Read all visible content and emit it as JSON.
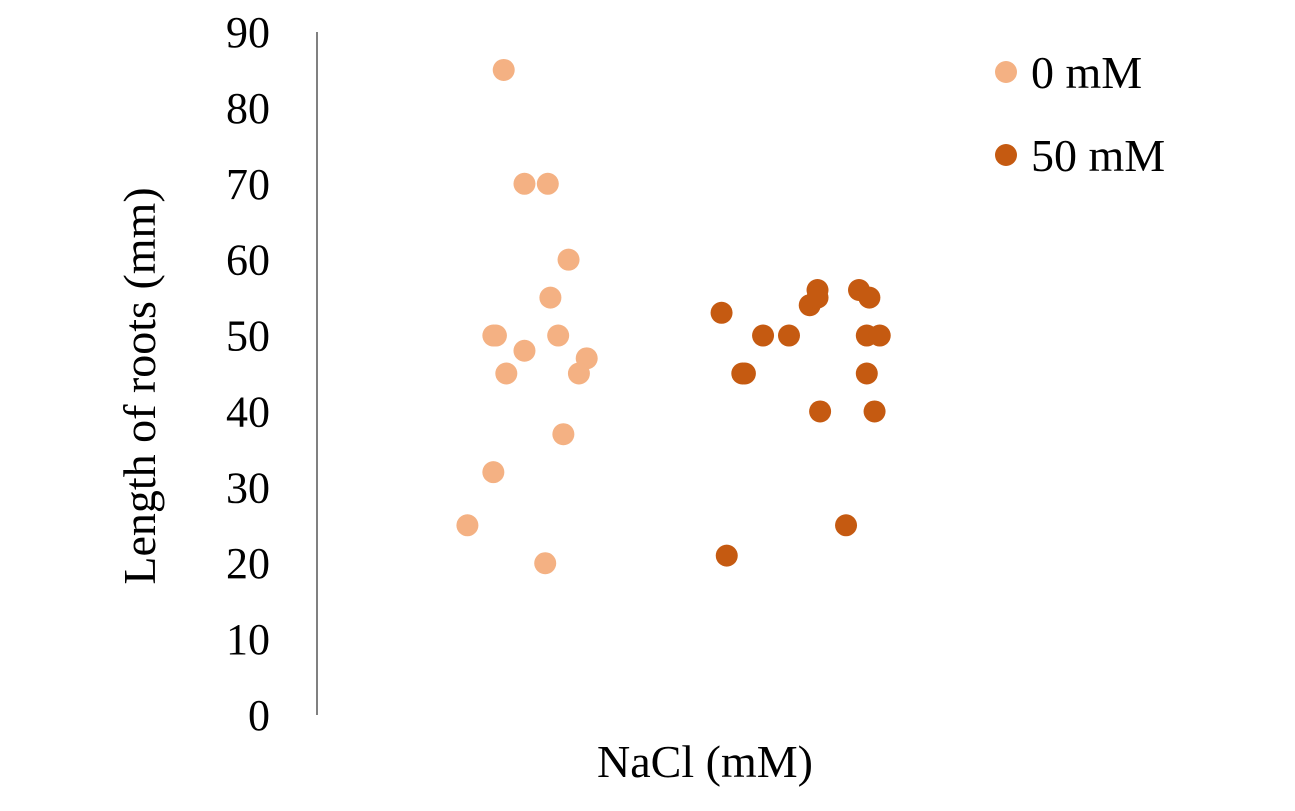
{
  "chart_data": {
    "type": "scatter",
    "title": "",
    "xlabel": "NaCl (mM)",
    "ylabel": "Length of  roots (mm)",
    "ylim": [
      0,
      90
    ],
    "yticks": [
      "0",
      "10",
      "20",
      "30",
      "40",
      "50",
      "60",
      "70",
      "80",
      "90"
    ],
    "grid": false,
    "legend": "top-right",
    "series": [
      {
        "name": "0 mM",
        "color": "#F4B183",
        "points": [
          {
            "x": 1.02,
            "y": 85
          },
          {
            "x": 1.1,
            "y": 70
          },
          {
            "x": 1.19,
            "y": 70
          },
          {
            "x": 1.27,
            "y": 60
          },
          {
            "x": 1.2,
            "y": 55
          },
          {
            "x": 0.98,
            "y": 50
          },
          {
            "x": 0.99,
            "y": 50
          },
          {
            "x": 1.23,
            "y": 50
          },
          {
            "x": 1.1,
            "y": 48
          },
          {
            "x": 1.34,
            "y": 47
          },
          {
            "x": 1.03,
            "y": 45
          },
          {
            "x": 1.31,
            "y": 45
          },
          {
            "x": 1.25,
            "y": 37
          },
          {
            "x": 0.98,
            "y": 32
          },
          {
            "x": 0.88,
            "y": 25
          },
          {
            "x": 1.18,
            "y": 20
          }
        ]
      },
      {
        "name": "50 mM",
        "color": "#C55A11",
        "points": [
          {
            "x": 1.86,
            "y": 53
          },
          {
            "x": 2.23,
            "y": 56
          },
          {
            "x": 2.39,
            "y": 56
          },
          {
            "x": 2.2,
            "y": 54
          },
          {
            "x": 2.23,
            "y": 55
          },
          {
            "x": 2.43,
            "y": 55
          },
          {
            "x": 2.02,
            "y": 50
          },
          {
            "x": 2.12,
            "y": 50
          },
          {
            "x": 2.42,
            "y": 50
          },
          {
            "x": 2.47,
            "y": 50
          },
          {
            "x": 1.94,
            "y": 45
          },
          {
            "x": 1.95,
            "y": 45
          },
          {
            "x": 2.42,
            "y": 45
          },
          {
            "x": 2.24,
            "y": 40
          },
          {
            "x": 2.45,
            "y": 40
          },
          {
            "x": 2.34,
            "y": 25
          },
          {
            "x": 1.88,
            "y": 21
          }
        ]
      }
    ]
  }
}
